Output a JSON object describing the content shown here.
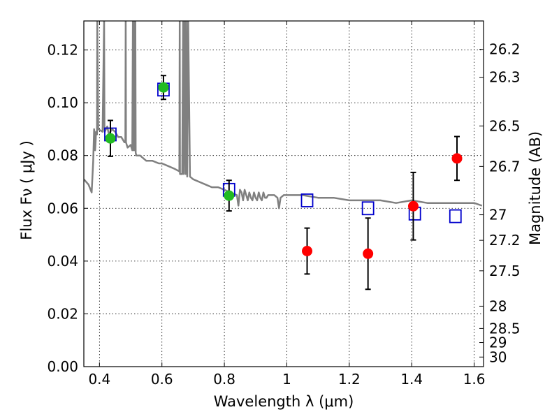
{
  "chart_data": {
    "type": "scatter",
    "title": "",
    "xlabel": "Wavelength  λ (μm)",
    "ylabel": "Flux  Fν  ( μJy )",
    "ylabel2": "Magnitude (AB)",
    "xlim": [
      0.35,
      1.63
    ],
    "ylim": [
      0.0,
      0.131
    ],
    "grid": true,
    "x_ticks": [
      0.4,
      0.6,
      0.8,
      1.0,
      1.2,
      1.4,
      1.6
    ],
    "x_tick_labels": [
      "0.4",
      "0.6",
      "0.8",
      "1",
      "1.2",
      "1.4",
      "1.6"
    ],
    "y_ticks": [
      0.0,
      0.02,
      0.04,
      0.06,
      0.08,
      0.1,
      0.12
    ],
    "y_tick_labels": [
      "0.00",
      "0.02",
      "0.04",
      "0.06",
      "0.08",
      "0.10",
      "0.12"
    ],
    "y2_ticks": [
      26.2,
      26.3,
      26.5,
      26.7,
      27,
      27.2,
      27.5,
      28,
      28.5,
      29,
      30
    ],
    "y2_tick_labels": [
      "26.2",
      "26.3",
      "26.5",
      "26.7",
      "27",
      "27.2",
      "27.5",
      "28",
      "28.5",
      "29",
      "30"
    ],
    "series": [
      {
        "kind": "line",
        "color": "#808080",
        "x": [
          0.35,
          0.365,
          0.375,
          0.38,
          0.383,
          0.386,
          0.388,
          0.389,
          0.392,
          0.393,
          0.396,
          0.41,
          0.415,
          0.416,
          0.417,
          0.425,
          0.43,
          0.44,
          0.45,
          0.46,
          0.47,
          0.48,
          0.483,
          0.484,
          0.485,
          0.49,
          0.5,
          0.505,
          0.507,
          0.509,
          0.51,
          0.513,
          0.515,
          0.516,
          0.518,
          0.53,
          0.55,
          0.57,
          0.59,
          0.6,
          0.62,
          0.64,
          0.656,
          0.657,
          0.658,
          0.66,
          0.665,
          0.668,
          0.67,
          0.673,
          0.676,
          0.678,
          0.681,
          0.684,
          0.69,
          0.7,
          0.72,
          0.74,
          0.76,
          0.78,
          0.8,
          0.82,
          0.84,
          0.845,
          0.85,
          0.855,
          0.86,
          0.865,
          0.87,
          0.875,
          0.88,
          0.885,
          0.89,
          0.895,
          0.9,
          0.905,
          0.91,
          0.915,
          0.92,
          0.925,
          0.93,
          0.935,
          0.94,
          0.95,
          0.96,
          0.97,
          0.975,
          0.98,
          0.99,
          1.0,
          1.05,
          1.1,
          1.15,
          1.2,
          1.25,
          1.3,
          1.35,
          1.4,
          1.45,
          1.5,
          1.55,
          1.6,
          1.625
        ],
        "y": [
          0.071,
          0.069,
          0.066,
          0.078,
          0.09,
          0.082,
          0.086,
          0.089,
          0.088,
          0.131,
          0.09,
          0.089,
          0.131,
          0.09,
          0.089,
          0.091,
          0.088,
          0.09,
          0.089,
          0.087,
          0.087,
          0.085,
          0.085,
          0.131,
          0.085,
          0.083,
          0.084,
          0.082,
          0.131,
          0.082,
          0.131,
          0.082,
          0.131,
          0.081,
          0.08,
          0.08,
          0.078,
          0.078,
          0.077,
          0.077,
          0.076,
          0.075,
          0.074,
          0.131,
          0.073,
          0.073,
          0.073,
          0.131,
          0.073,
          0.131,
          0.073,
          0.131,
          0.072,
          0.131,
          0.072,
          0.071,
          0.07,
          0.069,
          0.068,
          0.068,
          0.067,
          0.066,
          0.065,
          0.061,
          0.067,
          0.066,
          0.063,
          0.067,
          0.065,
          0.063,
          0.066,
          0.064,
          0.063,
          0.066,
          0.064,
          0.063,
          0.066,
          0.064,
          0.063,
          0.066,
          0.064,
          0.064,
          0.065,
          0.065,
          0.065,
          0.064,
          0.06,
          0.064,
          0.065,
          0.065,
          0.065,
          0.064,
          0.064,
          0.063,
          0.063,
          0.063,
          0.062,
          0.063,
          0.062,
          0.062,
          0.062,
          0.062,
          0.061
        ]
      },
      {
        "kind": "open-square",
        "color": "#0000cc",
        "x": [
          0.435,
          0.605,
          0.815,
          1.065,
          1.26,
          1.41,
          1.54
        ],
        "y": [
          0.088,
          0.105,
          0.067,
          0.063,
          0.06,
          0.058,
          0.057
        ]
      },
      {
        "kind": "point",
        "color": "#22bb22",
        "x": [
          0.435,
          0.605,
          0.815
        ],
        "y": [
          0.0865,
          0.1058,
          0.0648
        ],
        "yerr": [
          0.0068,
          0.0045,
          0.0058
        ]
      },
      {
        "kind": "point",
        "color": "#ff0000",
        "x": [
          1.065,
          1.26,
          1.405,
          1.545
        ],
        "y": [
          0.0438,
          0.0428,
          0.0608,
          0.0789
        ],
        "yerr": [
          0.0087,
          0.0135,
          0.0128,
          0.0083
        ]
      }
    ]
  }
}
